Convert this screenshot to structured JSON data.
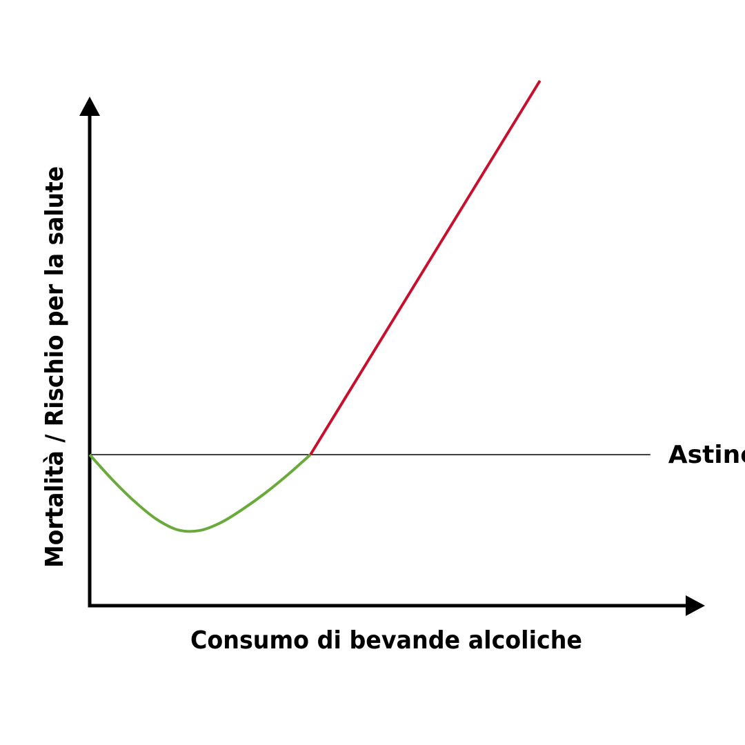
{
  "chart_data": {
    "type": "line",
    "title": "",
    "xlabel": "Consumo di bevande alcoliche",
    "ylabel": "Mortalità / Rischio per la salute",
    "xlim": [
      0,
      100
    ],
    "ylim": [
      0,
      100
    ],
    "grid": false,
    "series": [
      {
        "color": "#6aaa3a",
        "x": [
          0,
          5,
          10,
          15,
          20,
          25,
          30,
          35,
          40,
          45,
          50
        ],
        "y": [
          28.5,
          23.9,
          19.8,
          16.4,
          14.3,
          14.2,
          15.8,
          18.4,
          21.4,
          24.8,
          28.5
        ]
      },
      {
        "color": "#c8102e",
        "x": [
          50,
          102
        ],
        "y": [
          28.5,
          99.1
        ]
      }
    ],
    "reference_line": {
      "label": "Astinenza",
      "y": 28.5,
      "x_range": [
        0,
        127
      ]
    },
    "axis_arrows": true
  }
}
